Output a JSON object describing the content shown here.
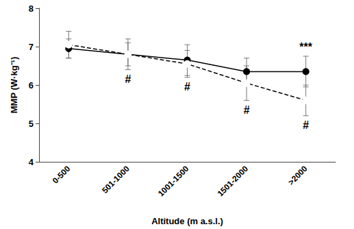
{
  "chart_data": {
    "type": "line",
    "x_label": "Altitude (m a.s.l.)",
    "y_label": "MMP (W·kg⁻¹)",
    "categories": [
      "0-500",
      "501-1000",
      "1001-1500",
      "1501-2000",
      ">2000"
    ],
    "series": [
      {
        "color": "#000000",
        "marker": "circle",
        "line_style": "solid",
        "values": [
          6.95,
          6.8,
          6.65,
          6.35,
          6.35
        ],
        "errors": [
          0.25,
          0.4,
          0.4,
          0.35,
          0.4
        ]
      },
      {
        "color": "#000000",
        "marker": "open_circle",
        "line_style": "dashed",
        "values": [
          7.05,
          6.8,
          6.55,
          6.05,
          5.6
        ],
        "errors": [
          0.35,
          0.3,
          0.35,
          0.45,
          0.4
        ]
      }
    ],
    "ylim": [
      4,
      8
    ],
    "yticks": [
      4,
      5,
      6,
      7,
      8
    ],
    "grid": false,
    "annotations": [
      {
        "text": "#",
        "x": "501-1000",
        "position": "below"
      },
      {
        "text": "#",
        "x": "1001-1500",
        "position": "below"
      },
      {
        "text": "#",
        "x": "1501-2000",
        "position": "below"
      },
      {
        "text": "#",
        "x": ">2000",
        "position": "below"
      },
      {
        "text": "***",
        "x": ">2000",
        "position": "above"
      }
    ]
  }
}
